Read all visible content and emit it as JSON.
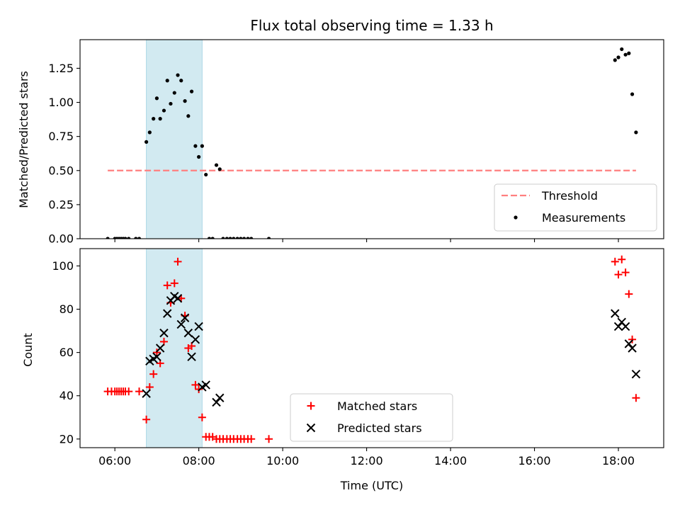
{
  "chart_data": [
    {
      "type": "scatter",
      "title": "Flux total observing time = 1.33 h",
      "xlabel": "",
      "ylabel": "Matched/Predicted stars",
      "xlim": [
        5.17,
        19.08
      ],
      "ylim": [
        0,
        1.46
      ],
      "yticks": [
        0.0,
        0.25,
        0.5,
        0.75,
        1.0,
        1.25
      ],
      "ytick_labels": [
        "0.00",
        "0.25",
        "0.50",
        "0.75",
        "1.00",
        "1.25"
      ],
      "shaded_span": {
        "x": [
          6.75,
          8.08
        ],
        "color": "#add8e6"
      },
      "threshold": {
        "name": "Threshold",
        "value": 0.5,
        "x": [
          5.83,
          18.42
        ],
        "color": "#ff7f7f",
        "style": "dashed"
      },
      "legend": {
        "position": "lower-right",
        "entries": [
          "Threshold",
          "Measurements"
        ]
      },
      "series": [
        {
          "name": "Measurements",
          "marker": "dot",
          "color": "#000000",
          "x": [
            5.83,
            6.0,
            6.05,
            6.1,
            6.15,
            6.2,
            6.25,
            6.33,
            6.5,
            6.58,
            6.75,
            6.83,
            6.92,
            7.0,
            7.08,
            7.17,
            7.25,
            7.33,
            7.42,
            7.5,
            7.58,
            7.67,
            7.75,
            7.83,
            7.92,
            8.0,
            8.08,
            8.17,
            8.25,
            8.33,
            8.42,
            8.5,
            8.58,
            8.67,
            8.75,
            8.83,
            8.92,
            9.0,
            9.08,
            9.17,
            9.25,
            9.67,
            17.92,
            18.0,
            18.08,
            18.17,
            18.25,
            18.33,
            18.42
          ],
          "y": [
            0.0,
            0.0,
            0.0,
            0.0,
            0.0,
            0.0,
            0.0,
            0.0,
            0.0,
            0.0,
            0.71,
            0.78,
            0.88,
            1.03,
            0.88,
            0.94,
            1.16,
            0.99,
            1.07,
            1.2,
            1.16,
            1.01,
            0.9,
            1.08,
            0.68,
            0.6,
            0.68,
            0.47,
            0.0,
            0.0,
            0.54,
            0.51,
            0.0,
            0.0,
            0.0,
            0.0,
            0.0,
            0.0,
            0.0,
            0.0,
            0.0,
            0.0,
            1.31,
            1.33,
            1.39,
            1.35,
            1.36,
            1.06,
            0.78
          ]
        }
      ]
    },
    {
      "type": "scatter",
      "title": "",
      "xlabel": "Time (UTC)",
      "ylabel": "Count",
      "xlim": [
        5.17,
        19.08
      ],
      "ylim": [
        16,
        108
      ],
      "xticks": [
        6,
        8,
        10,
        12,
        14,
        16,
        18
      ],
      "xtick_labels": [
        "06:00",
        "08:00",
        "10:00",
        "12:00",
        "14:00",
        "16:00",
        "18:00"
      ],
      "yticks": [
        20,
        40,
        60,
        80,
        100
      ],
      "ytick_labels": [
        "20",
        "40",
        "60",
        "80",
        "100"
      ],
      "shaded_span": {
        "x": [
          6.75,
          8.08
        ],
        "color": "#add8e6"
      },
      "legend": {
        "position": "lower-center",
        "entries": [
          "Matched stars",
          "Predicted stars"
        ]
      },
      "series": [
        {
          "name": "Matched stars",
          "marker": "plus",
          "color": "#ff0000",
          "x": [
            5.83,
            5.92,
            6.0,
            6.05,
            6.1,
            6.15,
            6.2,
            6.25,
            6.33,
            6.58,
            6.75,
            6.83,
            6.92,
            7.0,
            7.08,
            7.17,
            7.25,
            7.33,
            7.42,
            7.5,
            7.58,
            7.67,
            7.75,
            7.83,
            7.92,
            8.0,
            8.08,
            8.17,
            8.25,
            8.33,
            8.42,
            8.5,
            8.58,
            8.67,
            8.75,
            8.83,
            8.92,
            9.0,
            9.08,
            9.17,
            9.25,
            9.67,
            17.92,
            18.0,
            18.08,
            18.17,
            18.25,
            18.33,
            18.42
          ],
          "y": [
            42,
            42,
            42,
            42,
            42,
            42,
            42,
            42,
            42,
            42,
            29,
            44,
            50,
            60,
            55,
            65,
            91,
            83,
            92,
            102,
            85,
            77,
            62,
            63,
            45,
            43,
            30,
            21,
            21,
            21,
            20,
            20,
            20,
            20,
            20,
            20,
            20,
            20,
            20,
            20,
            20,
            20,
            102,
            96,
            103,
            97,
            87,
            66,
            39
          ]
        },
        {
          "name": "Predicted stars",
          "marker": "x",
          "color": "#000000",
          "x": [
            6.75,
            6.83,
            6.92,
            7.0,
            7.08,
            7.17,
            7.25,
            7.33,
            7.42,
            7.5,
            7.58,
            7.67,
            7.75,
            7.83,
            7.92,
            8.0,
            8.08,
            8.17,
            8.42,
            8.5,
            17.92,
            18.0,
            18.08,
            18.17,
            18.25,
            18.33,
            18.42
          ],
          "y": [
            41,
            56,
            57,
            58,
            62,
            69,
            78,
            84,
            86,
            85,
            73,
            76,
            69,
            58,
            66,
            72,
            44,
            45,
            37,
            39,
            78,
            72,
            74,
            72,
            64,
            62,
            50
          ]
        }
      ]
    }
  ]
}
